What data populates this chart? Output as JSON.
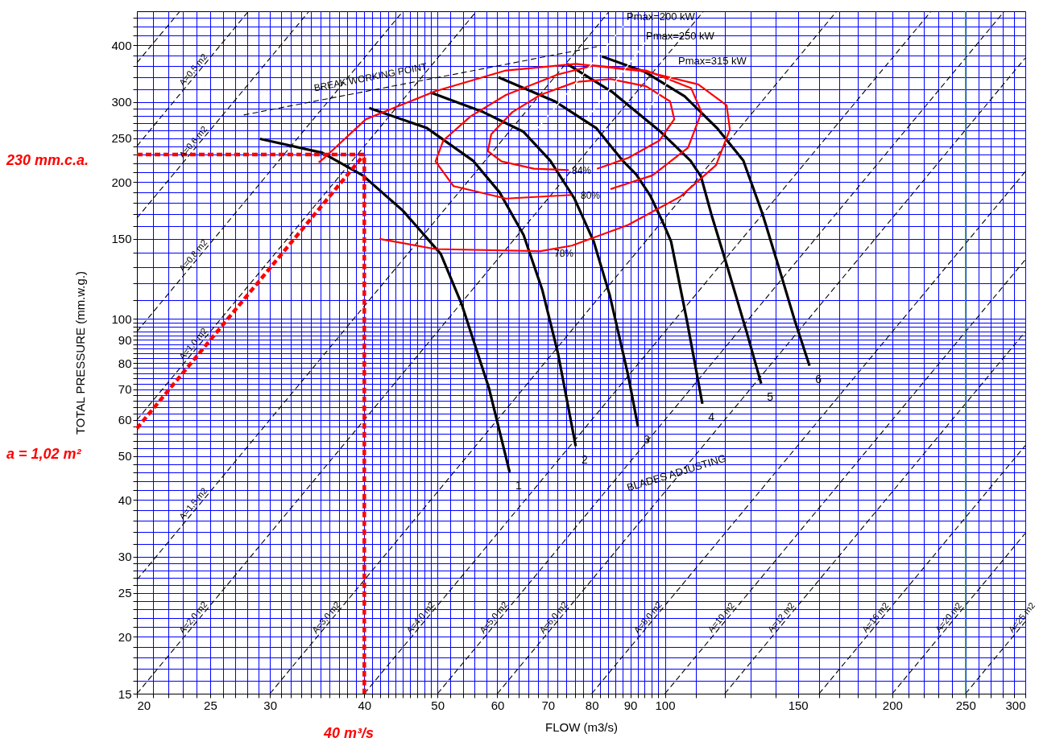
{
  "chart_data": {
    "type": "line",
    "xlabel": "FLOW (m3/s)",
    "ylabel": "TOTAL PRESSURE (mm.w.g.)",
    "log": "xy",
    "grid": true,
    "xlim": [
      20,
      300
    ],
    "ylim": [
      15,
      475
    ],
    "xticks": [
      20,
      {
        "value": 21,
        "label": null
      },
      {
        "value": 22,
        "label": null
      },
      {
        "value": 23,
        "label": null
      },
      {
        "value": 24,
        "label": null
      },
      25,
      {
        "value": 26,
        "label": null
      },
      {
        "value": 27,
        "label": null
      },
      {
        "value": 28,
        "label": null
      },
      {
        "value": 29,
        "label": null
      },
      30,
      {
        "value": 31,
        "label": null
      },
      {
        "value": 32,
        "label": null
      },
      {
        "value": 33,
        "label": null
      },
      {
        "value": 34,
        "label": null
      },
      {
        "value": 35,
        "label": null
      },
      {
        "value": 36,
        "label": null
      },
      {
        "value": 37,
        "label": null
      },
      {
        "value": 38,
        "label": null
      },
      {
        "value": 39,
        "label": null
      },
      40,
      {
        "value": 41,
        "label": null
      },
      {
        "value": 42,
        "label": null
      },
      {
        "value": 43,
        "label": null
      },
      {
        "value": 44,
        "label": null
      },
      {
        "value": 45,
        "label": null
      },
      {
        "value": 46,
        "label": null
      },
      {
        "value": 47,
        "label": null
      },
      {
        "value": 48,
        "label": null
      },
      {
        "value": 49,
        "label": null
      },
      50,
      {
        "value": 52,
        "label": null
      },
      {
        "value": 54,
        "label": null
      },
      {
        "value": 56,
        "label": null
      },
      {
        "value": 58,
        "label": null
      },
      60,
      {
        "value": 62,
        "label": null
      },
      {
        "value": 64,
        "label": null
      },
      {
        "value": 66,
        "label": null
      },
      {
        "value": 68,
        "label": null
      },
      70,
      {
        "value": 72,
        "label": null
      },
      {
        "value": 74,
        "label": null
      },
      {
        "value": 76,
        "label": null
      },
      {
        "value": 78,
        "label": null
      },
      80,
      {
        "value": 82,
        "label": null
      },
      {
        "value": 84,
        "label": null
      },
      {
        "value": 86,
        "label": null
      },
      {
        "value": 88,
        "label": null
      },
      90,
      {
        "value": 92,
        "label": null
      },
      {
        "value": 94,
        "label": null
      },
      {
        "value": 96,
        "label": null
      },
      {
        "value": 98,
        "label": null
      },
      100,
      {
        "value": 110,
        "label": null
      },
      {
        "value": 120,
        "label": null
      },
      {
        "value": 130,
        "label": null
      },
      {
        "value": 140,
        "label": null
      },
      150,
      {
        "value": 160,
        "label": null
      },
      {
        "value": 170,
        "label": null
      },
      {
        "value": 180,
        "label": null
      },
      {
        "value": 190,
        "label": null
      },
      200,
      {
        "value": 210,
        "label": null
      },
      {
        "value": 220,
        "label": null
      },
      {
        "value": 230,
        "label": null
      },
      {
        "value": 240,
        "label": null
      },
      250,
      {
        "value": 260,
        "label": null
      },
      {
        "value": 270,
        "label": null
      },
      {
        "value": 280,
        "label": null
      },
      {
        "value": 290,
        "label": null
      },
      300
    ],
    "yticks": [
      15,
      {
        "value": 16,
        "label": null
      },
      {
        "value": 17,
        "label": null
      },
      {
        "value": 18,
        "label": null
      },
      {
        "value": 19,
        "label": null
      },
      20,
      {
        "value": 21,
        "label": null
      },
      {
        "value": 22,
        "label": null
      },
      {
        "value": 23,
        "label": null
      },
      {
        "value": 24,
        "label": null
      },
      25,
      {
        "value": 26,
        "label": null
      },
      {
        "value": 27,
        "label": null
      },
      {
        "value": 28,
        "label": null
      },
      {
        "value": 29,
        "label": null
      },
      30,
      {
        "value": 32,
        "label": null
      },
      {
        "value": 34,
        "label": null
      },
      {
        "value": 36,
        "label": null
      },
      {
        "value": 38,
        "label": null
      },
      40,
      {
        "value": 42,
        "label": null
      },
      {
        "value": 44,
        "label": null
      },
      {
        "value": 46,
        "label": null
      },
      {
        "value": 48,
        "label": null
      },
      50,
      {
        "value": 52,
        "label": null
      },
      {
        "value": 54,
        "label": null
      },
      {
        "value": 56,
        "label": null
      },
      {
        "value": 58,
        "label": null
      },
      60,
      {
        "value": 62,
        "label": null
      },
      {
        "value": 64,
        "label": null
      },
      {
        "value": 66,
        "label": null
      },
      {
        "value": 68,
        "label": null
      },
      70,
      {
        "value": 72,
        "label": null
      },
      {
        "value": 74,
        "label": null
      },
      {
        "value": 76,
        "label": null
      },
      {
        "value": 78,
        "label": null
      },
      80,
      {
        "value": 82,
        "label": null
      },
      {
        "value": 84,
        "label": null
      },
      {
        "value": 86,
        "label": null
      },
      {
        "value": 88,
        "label": null
      },
      90,
      {
        "value": 92,
        "label": null
      },
      {
        "value": 94,
        "label": null
      },
      {
        "value": 96,
        "label": null
      },
      {
        "value": 98,
        "label": null
      },
      100,
      {
        "value": 110,
        "label": null
      },
      {
        "value": 120,
        "label": null
      },
      {
        "value": 130,
        "label": null
      },
      {
        "value": 140,
        "label": null
      },
      150,
      {
        "value": 160,
        "label": null
      },
      {
        "value": 170,
        "label": null
      },
      {
        "value": 180,
        "label": null
      },
      {
        "value": 190,
        "label": null
      },
      200,
      {
        "value": 210,
        "label": null
      },
      {
        "value": 220,
        "label": null
      },
      {
        "value": 230,
        "label": null
      },
      {
        "value": 240,
        "label": null
      },
      250,
      {
        "value": 260,
        "label": null
      },
      {
        "value": 270,
        "label": null
      },
      {
        "value": 280,
        "label": null
      },
      {
        "value": 290,
        "label": null
      },
      300,
      {
        "value": 320,
        "label": null
      },
      {
        "value": 340,
        "label": null
      },
      {
        "value": 360,
        "label": null
      },
      {
        "value": 380,
        "label": null
      },
      400,
      {
        "value": 420,
        "label": null
      },
      {
        "value": 440,
        "label": null
      },
      {
        "value": 460,
        "label": null
      }
    ],
    "series": [
      {
        "name": "1",
        "color": "#000000",
        "line_style": "solid",
        "x": [
          29.1,
          35.2,
          39.8,
          45.0,
          50.5,
          53.8,
          58.5,
          62.3
        ],
        "values": [
          249,
          232,
          207,
          173,
          139,
          108,
          70.4,
          46.0
        ]
      },
      {
        "name": "2",
        "color": "#000000",
        "line_style": "solid",
        "x": [
          40.6,
          48.4,
          55.7,
          60.4,
          65.0,
          68.8,
          72.2,
          76.2
        ],
        "values": [
          291,
          263,
          223,
          190,
          153,
          116,
          83.9,
          52.5
        ]
      },
      {
        "name": "3",
        "color": "#000000",
        "line_style": "solid",
        "x": [
          48.9,
          57.5,
          65.0,
          70.5,
          75.9,
          80.5,
          84.5,
          89.4,
          92.1
        ],
        "values": [
          315,
          285,
          258,
          223,
          184,
          148,
          113,
          75.2,
          58.1
        ]
      },
      {
        "name": "4",
        "color": "#000000",
        "line_style": "solid",
        "x": [
          60.2,
          71.5,
          81.1,
          87.9,
          91.6,
          95.6,
          99.4,
          101.9,
          107.0,
          112.1
        ],
        "values": [
          340,
          301,
          263,
          223,
          208,
          187,
          163,
          148,
          98.7,
          65.1
        ]
      },
      {
        "name": "5",
        "color": "#000000",
        "line_style": "solid",
        "x": [
          74.2,
          85.1,
          98.7,
          108.1,
          111.6,
          115.2,
          121.0,
          128.3,
          134.1
        ],
        "values": [
          364,
          316,
          258,
          223,
          206,
          170,
          130,
          93.6,
          72.1
        ]
      },
      {
        "name": "6",
        "color": "#000000",
        "line_style": "solid",
        "x": [
          82.5,
          93.9,
          106.2,
          117.2,
          127.0,
          129.2,
          134.7,
          141.5,
          148.7,
          155.4
        ],
        "values": [
          378,
          350,
          309,
          263,
          223,
          206,
          170,
          130,
          98.7,
          78.9
        ]
      },
      {
        "color": "#000000",
        "line_style": "dashed",
        "x": [
          20,
          22.8
        ],
        "values": [
          366,
          475
        ]
      },
      {
        "name": "A=0,5 m2",
        "color": "#000000",
        "line_style": "dashed",
        "x": [
          20,
          28.1
        ],
        "values": [
          240,
          475
        ]
      },
      {
        "name": "A=0,6 m2",
        "color": "#000000",
        "line_style": "dashed",
        "x": [
          20,
          33.8
        ],
        "values": [
          166.7,
          475
        ]
      },
      {
        "name": "A=0,8 m2",
        "color": "#000000",
        "line_style": "dashed",
        "x": [
          20,
          45.0
        ],
        "values": [
          93.8,
          475
        ]
      },
      {
        "name": "A=1,0 m2",
        "color": "#000000",
        "line_style": "dashed",
        "x": [
          20,
          56.3
        ],
        "values": [
          60,
          475
        ]
      },
      {
        "name": "A=1,5 m2",
        "color": "#000000",
        "line_style": "dashed",
        "x": [
          20,
          84.4
        ],
        "values": [
          26.7,
          475
        ]
      },
      {
        "name": "A=2,0 m2",
        "color": "#000000",
        "line_style": "dashed",
        "x": [
          20,
          112.5
        ],
        "values": [
          15,
          475
        ]
      },
      {
        "name": "A=3,0 m2",
        "color": "#000000",
        "line_style": "dashed",
        "x": [
          30,
          168.8
        ],
        "values": [
          15,
          475
        ]
      },
      {
        "name": "A=4,0 m2",
        "color": "#000000",
        "line_style": "dashed",
        "x": [
          40,
          225.1
        ],
        "values": [
          15,
          475
        ]
      },
      {
        "name": "A=5,0 m2",
        "color": "#000000",
        "line_style": "dashed",
        "x": [
          50,
          281.4
        ],
        "values": [
          15,
          475
        ]
      },
      {
        "name": "A=6,0 m2",
        "color": "#000000",
        "line_style": "dashed",
        "x": [
          60,
          300
        ],
        "values": [
          15,
          375
        ]
      },
      {
        "name": "A=8,0 m2",
        "color": "#000000",
        "line_style": "dashed",
        "x": [
          80,
          300
        ],
        "values": [
          15,
          210.9
        ]
      },
      {
        "name": "A=10 m2",
        "color": "#000000",
        "line_style": "dashed",
        "x": [
          100,
          300
        ],
        "values": [
          15,
          135
        ]
      },
      {
        "name": "A=12 m2",
        "color": "#000000",
        "line_style": "dashed",
        "x": [
          120,
          300
        ],
        "values": [
          15,
          93.8
        ]
      },
      {
        "name": "A=16 m2",
        "color": "#000000",
        "line_style": "dashed",
        "x": [
          160,
          300
        ],
        "values": [
          15,
          52.7
        ]
      },
      {
        "name": "A=20 m2",
        "color": "#000000",
        "line_style": "dashed",
        "x": [
          200,
          300
        ],
        "values": [
          15,
          33.8
        ]
      },
      {
        "name": "A=25 m2",
        "color": "#000000",
        "line_style": "dashed",
        "x": [
          250,
          300
        ],
        "values": [
          15,
          21.6
        ]
      },
      {
        "color": "#000000",
        "line_style": "dashed",
        "x": [
          27.7,
          81.3
        ],
        "values": [
          281,
          397
        ]
      },
      {
        "color": "#ff0000",
        "line_style": "solid",
        "x": [
          74.6,
          67.1,
          60.8,
          58.3,
          58.9,
          62.8,
          68.4,
          76.2,
          84.7,
          94.4,
          101.6,
          102.9,
          98.4,
          89.4,
          81.3
        ],
        "values": [
          212.6,
          214,
          222,
          234,
          255,
          285,
          311,
          332,
          337,
          325,
          301,
          275,
          247,
          226,
          214
        ]
      },
      {
        "color": "#ff0000",
        "line_style": "solid",
        "x": [
          75.3,
          61.6,
          52.5,
          49.7,
          50.9,
          55.3,
          61.6,
          72.2,
          80.5,
          94.4,
          108.3,
          111.8,
          107.3,
          96.3,
          84.7
        ],
        "values": [
          187.4,
          184,
          196,
          222,
          247,
          279,
          311,
          345,
          361,
          352,
          322,
          285,
          238,
          207,
          193
        ]
      },
      {
        "color": "#ff0000",
        "line_style": "solid",
        "x": [
          34.8,
          35.4,
          40.2,
          49.7,
          61.6,
          76.2,
          94.4,
          110.7,
          120.7,
          121.9,
          116.9,
          104.9,
          89.4,
          75.3,
          68.4,
          49.7,
          41.9
        ],
        "values": [
          221,
          226,
          275,
          317,
          352,
          364,
          350,
          328,
          295,
          261,
          218,
          186,
          161,
          145,
          141,
          142.5,
          150
        ]
      },
      {
        "color": "#ff0000",
        "line_style": "dashed",
        "x": [
          20,
          40,
          40
        ],
        "values": [
          230,
          230,
          15
        ]
      },
      {
        "color": "#ff0000",
        "line_style": "dashed",
        "x": [
          20,
          40
        ],
        "values": [
          57.5,
          230
        ]
      }
    ],
    "ref_lines": [
      {
        "axis": "x",
        "value": 250,
        "color": "#00dd00"
      }
    ],
    "annotations": [
      "230 mm.c.a.",
      "40 m³/s",
      "a = 1,02 m²",
      "BREAK WORKING POINT",
      "BLADES ADJUSTING",
      "Pmax=200 kW",
      {
        "text": "Pmax=250 kW",
        "x": 78.7,
        "y": 275
      },
      "Pmax=315 kW",
      "84%",
      "80%",
      "78%"
    ]
  }
}
